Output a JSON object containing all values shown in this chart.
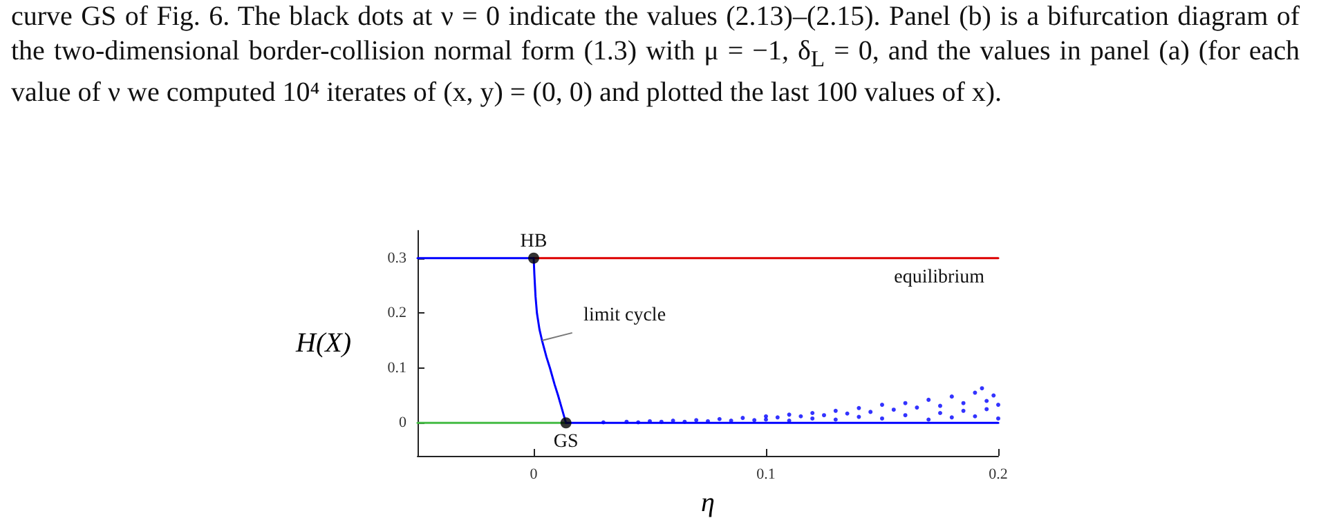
{
  "chart_data": {
    "type": "line",
    "xlabel": "η",
    "ylabel": "H(X)",
    "xlim": [
      -0.05,
      0.2
    ],
    "ylim": [
      -0.06,
      0.35
    ],
    "xticks": [
      0,
      0.1,
      0.2
    ],
    "yticks": [
      0,
      0.1,
      0.2,
      0.3
    ],
    "grid": false,
    "line_style": "solid",
    "series": [
      {
        "color": "#0000ff",
        "x": [
          -0.05,
          0
        ],
        "values": [
          0.3,
          0.3
        ]
      },
      {
        "color": "#dd0000",
        "x": [
          0,
          0.2
        ],
        "values": [
          0.3,
          0.3
        ]
      },
      {
        "color": "#0000ff",
        "x": [
          0,
          0.0003,
          0.0008,
          0.0014,
          0.0025,
          0.0036,
          0.0055,
          0.007,
          0.009,
          0.0105,
          0.0122,
          0.0139
        ],
        "values": [
          0.3,
          0.27,
          0.23,
          0.2,
          0.17,
          0.15,
          0.12,
          0.1,
          0.07,
          0.05,
          0.025,
          0
        ]
      },
      {
        "color": "#44bb44",
        "x": [
          -0.05,
          0.0139
        ],
        "values": [
          0,
          0
        ]
      },
      {
        "color": "#0000ff",
        "x": [
          0.0139,
          0.2
        ],
        "values": [
          0,
          0
        ]
      },
      {
        "type": "scatter",
        "color": "#0000ff",
        "x": [
          0.03,
          0.04,
          0.045,
          0.05,
          0.055,
          0.06,
          0.065,
          0.07,
          0.075,
          0.08,
          0.085,
          0.09,
          0.095,
          0.1,
          0.1,
          0.105,
          0.11,
          0.11,
          0.115,
          0.12,
          0.12,
          0.125,
          0.13,
          0.13,
          0.135,
          0.14,
          0.14,
          0.145,
          0.15,
          0.15,
          0.155,
          0.16,
          0.16,
          0.165,
          0.17,
          0.17,
          0.175,
          0.175,
          0.18,
          0.18,
          0.185,
          0.185,
          0.19,
          0.19,
          0.193,
          0.195,
          0.195,
          0.198,
          0.2,
          0.2
        ],
        "values": [
          0.001,
          0.002,
          0.001,
          0.003,
          0.002,
          0.004,
          0.002,
          0.005,
          0.003,
          0.007,
          0.004,
          0.009,
          0.005,
          0.012,
          0.006,
          0.01,
          0.015,
          0.004,
          0.012,
          0.018,
          0.008,
          0.014,
          0.022,
          0.006,
          0.017,
          0.027,
          0.011,
          0.02,
          0.033,
          0.008,
          0.024,
          0.036,
          0.014,
          0.028,
          0.042,
          0.006,
          0.031,
          0.018,
          0.048,
          0.01,
          0.036,
          0.022,
          0.055,
          0.012,
          0.063,
          0.04,
          0.025,
          0.05,
          0.033,
          0.008
        ]
      },
      {
        "type": "scatter",
        "color": "#000000",
        "x": [
          0,
          0.0139
        ],
        "values": [
          0.3,
          0
        ]
      }
    ],
    "annotations": [
      "curve GS of Fig. 6. The black dots at ν = 0 indicate the values (2.13)–(2.15). Panel (b) is a bifurcation diagram of the two-dimensional border-collision normal form (1.3) with μ = −1, δ$_{L}$ = 0, and the values in panel (a) (for each value of ν we computed 10⁴ iterates of (x, y) = (0, 0) and plotted the last 100 values of x).",
      {
        "text": "HB",
        "x": 0,
        "y": 0.3
      },
      {
        "text": "GS",
        "x": 0.0139,
        "y": 0
      },
      {
        "text": "limit cycle",
        "x": 0.0036,
        "y": 0.15
      },
      {
        "text": "equilibrium",
        "x": 0.2,
        "y": 0.3
      }
    ]
  }
}
